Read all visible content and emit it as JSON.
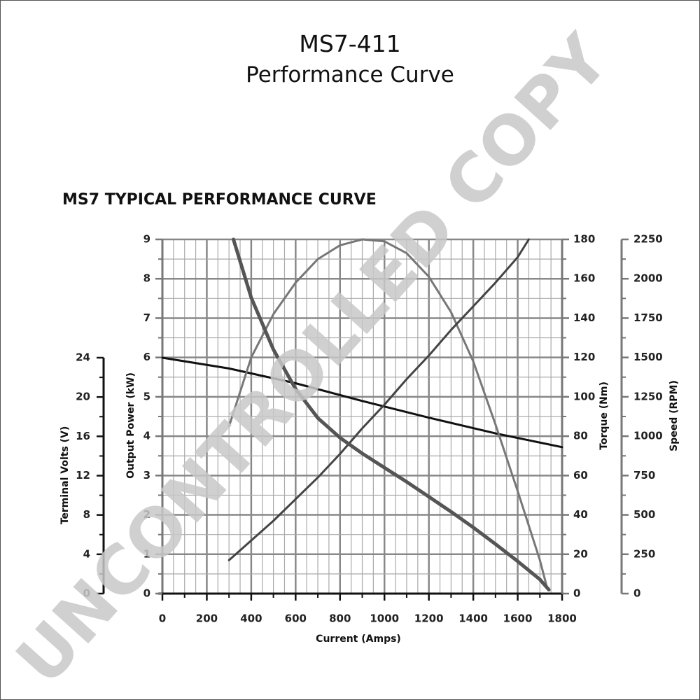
{
  "document": {
    "title_line1": "MS7-411",
    "title_line2": "Performance Curve",
    "watermark": "UNCONTROLLED COPY"
  },
  "chart_data": {
    "type": "line",
    "title": "MS7 TYPICAL PERFORMANCE CURVE",
    "grid": true,
    "x_axis": {
      "label": "Current (Amps)",
      "range": [
        0,
        1800
      ],
      "ticks": [
        "0",
        "200",
        "400",
        "600",
        "800",
        "1000",
        "1200",
        "1400",
        "1600",
        "1800"
      ]
    },
    "y_axes": [
      {
        "id": "volts",
        "label": "Terminal Volts (V)",
        "range": [
          0,
          24
        ],
        "ticks": [
          "0",
          "4",
          "8",
          "12",
          "16",
          "20",
          "24"
        ]
      },
      {
        "id": "power",
        "label": "Output Power (kW)",
        "range": [
          0,
          9
        ],
        "ticks": [
          "0",
          "1",
          "2",
          "3",
          "4",
          "5",
          "6",
          "7",
          "8",
          "9"
        ]
      },
      {
        "id": "torque",
        "label": "Torque (Nm)",
        "range": [
          0,
          180
        ],
        "ticks": [
          "0",
          "20",
          "40",
          "60",
          "80",
          "100",
          "120",
          "140",
          "160",
          "180"
        ]
      },
      {
        "id": "speed",
        "label": "Speed (RPM)",
        "range": [
          0,
          2250
        ],
        "ticks": [
          "0",
          "250",
          "500",
          "750",
          "1000",
          "1250",
          "1500",
          "1750",
          "2000",
          "2250"
        ]
      }
    ],
    "series": [
      {
        "axis": "volts",
        "color": "#111111",
        "points": [
          [
            0,
            24
          ],
          [
            300,
            22.9
          ],
          [
            600,
            21.4
          ],
          [
            900,
            19.6
          ],
          [
            1200,
            17.9
          ],
          [
            1500,
            16.3
          ],
          [
            1800,
            14.9
          ]
        ]
      },
      {
        "axis": "power",
        "color": "#777777",
        "points": [
          [
            300,
            4.25
          ],
          [
            400,
            6.0
          ],
          [
            500,
            7.1
          ],
          [
            600,
            7.9
          ],
          [
            700,
            8.5
          ],
          [
            800,
            8.85
          ],
          [
            900,
            9.0
          ],
          [
            1000,
            8.95
          ],
          [
            1100,
            8.65
          ],
          [
            1200,
            8.05
          ],
          [
            1300,
            7.15
          ],
          [
            1400,
            5.9
          ],
          [
            1500,
            4.3
          ],
          [
            1600,
            2.6
          ],
          [
            1700,
            0.85
          ],
          [
            1730,
            0.2
          ]
        ]
      },
      {
        "axis": "torque",
        "color": "#444444",
        "points": [
          [
            300,
            17
          ],
          [
            400,
            27
          ],
          [
            500,
            37
          ],
          [
            600,
            48
          ],
          [
            700,
            59
          ],
          [
            800,
            71
          ],
          [
            900,
            84
          ],
          [
            1000,
            96
          ],
          [
            1100,
            109
          ],
          [
            1200,
            121
          ],
          [
            1300,
            134
          ],
          [
            1400,
            146
          ],
          [
            1500,
            158
          ],
          [
            1600,
            171
          ],
          [
            1650,
            180
          ]
        ]
      },
      {
        "axis": "speed",
        "color": "#555555",
        "points": [
          [
            320,
            2250
          ],
          [
            400,
            1880
          ],
          [
            500,
            1550
          ],
          [
            600,
            1300
          ],
          [
            700,
            1115
          ],
          [
            800,
            990
          ],
          [
            900,
            890
          ],
          [
            1000,
            800
          ],
          [
            1100,
            710
          ],
          [
            1200,
            615
          ],
          [
            1300,
            520
          ],
          [
            1400,
            420
          ],
          [
            1500,
            315
          ],
          [
            1600,
            205
          ],
          [
            1700,
            90
          ],
          [
            1740,
            25
          ]
        ]
      }
    ]
  }
}
